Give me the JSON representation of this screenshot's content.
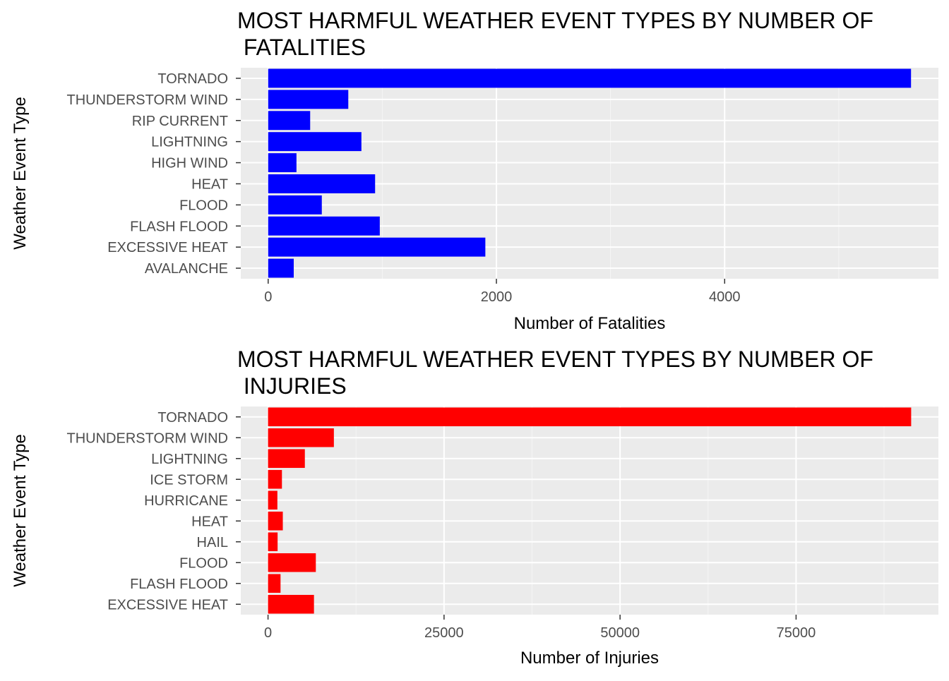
{
  "chart_data": [
    {
      "type": "bar",
      "orientation": "horizontal",
      "title_lines": [
        "MOST HARMFUL WEATHER EVENT TYPES BY NUMBER OF",
        " FATALITIES"
      ],
      "xlabel": "Number of Fatalities",
      "ylabel": "Weather Event Type",
      "bar_color": "#0000ff",
      "categories": [
        "TORNADO",
        "THUNDERSTORM WIND",
        "RIP CURRENT",
        "LIGHTNING",
        "HIGH WIND",
        "HEAT",
        "FLOOD",
        "FLASH FLOOD",
        "EXCESSIVE HEAT",
        "AVALANCHE"
      ],
      "values": [
        5633,
        702,
        368,
        817,
        248,
        937,
        470,
        978,
        1903,
        224
      ],
      "xlim": [
        -240,
        5873
      ],
      "xticks": [
        0,
        2000,
        4000
      ],
      "xtick_labels": [
        "0",
        "2000",
        "4000"
      ],
      "grid": true,
      "legend": "none"
    },
    {
      "type": "bar",
      "orientation": "horizontal",
      "title_lines": [
        "MOST HARMFUL WEATHER EVENT TYPES BY NUMBER OF",
        " INJURIES"
      ],
      "xlabel": "Number of Injuries",
      "ylabel": "Weather Event Type",
      "bar_color": "#ff0000",
      "categories": [
        "TORNADO",
        "THUNDERSTORM WIND",
        "LIGHTNING",
        "ICE STORM",
        "HURRICANE",
        "HEAT",
        "HAIL",
        "FLOOD",
        "FLASH FLOOD",
        "EXCESSIVE HEAT"
      ],
      "values": [
        91346,
        9353,
        5230,
        1975,
        1328,
        2100,
        1361,
        6789,
        1777,
        6525
      ],
      "xlim": [
        -3870,
        95216
      ],
      "xticks": [
        0,
        25000,
        50000,
        75000
      ],
      "xtick_labels": [
        "0",
        "25000",
        "50000",
        "75000"
      ],
      "grid": true,
      "legend": "none"
    }
  ]
}
